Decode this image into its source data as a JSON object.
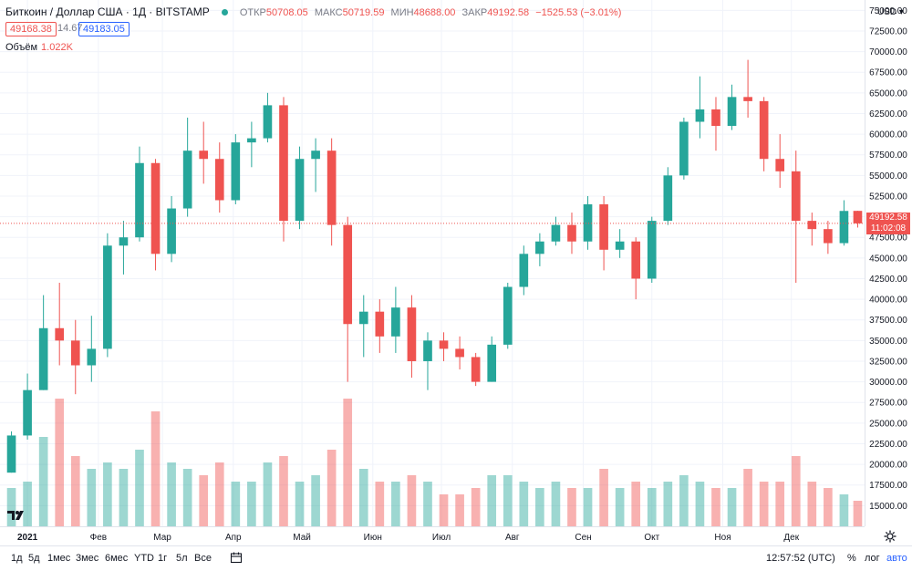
{
  "legend": {
    "symbol": "Биткоин / Доллар США · 1Д · BITSTAMP",
    "open_label": "ОТКР",
    "open": "50708.05",
    "high_label": "МАКС",
    "high": "50719.59",
    "low_label": "МИН",
    "low": "48688.00",
    "close_label": "ЗАКР",
    "close": "49192.58",
    "change": "−1525.53 (−3.01%)"
  },
  "quote": {
    "bid": "49168.38",
    "spread": "14.67",
    "ask": "49183.05"
  },
  "volume": {
    "label": "Объём",
    "value": "1.022K"
  },
  "price_axis": {
    "currency": "USD ▾",
    "last_price": "49192.58",
    "countdown": "11:02:08"
  },
  "bottom_bar": {
    "ranges": [
      "1д",
      "5д",
      "1мес",
      "3мес",
      "6мес",
      "YTD",
      "1г",
      "5л",
      "Все"
    ],
    "clock": "12:57:52 (UTC)",
    "percent": "%",
    "log": "лог",
    "auto": "авто"
  },
  "colors": {
    "up": "#26a69a",
    "down": "#ef5350",
    "accent": "#2962ff"
  },
  "icons": {
    "logo": "tradingview-logo-icon",
    "calendar": "calendar-icon",
    "settings": "gear-icon"
  },
  "chart_data": {
    "type": "candlestick",
    "x_tick_labels": [
      "2021",
      "Фев",
      "Мар",
      "Апр",
      "Май",
      "Июн",
      "Июл",
      "Авг",
      "Сен",
      "Окт",
      "Ноя",
      "Дек"
    ],
    "y_ticks": [
      15000,
      17500,
      20000,
      22500,
      25000,
      27500,
      30000,
      32500,
      35000,
      37500,
      40000,
      42500,
      45000,
      47500,
      50000,
      52500,
      55000,
      57500,
      60000,
      62500,
      65000,
      67500,
      70000,
      72500,
      75000
    ],
    "ylim": [
      12500,
      76250
    ],
    "grid": true,
    "x": [
      "2020-12-25",
      "2021-01-01",
      "2021-01-08",
      "2021-01-15",
      "2021-01-22",
      "2021-01-29",
      "2021-02-05",
      "2021-02-12",
      "2021-02-19",
      "2021-02-26",
      "2021-03-05",
      "2021-03-12",
      "2021-03-19",
      "2021-03-26",
      "2021-04-02",
      "2021-04-09",
      "2021-04-16",
      "2021-04-23",
      "2021-04-30",
      "2021-05-07",
      "2021-05-14",
      "2021-05-21",
      "2021-05-28",
      "2021-06-04",
      "2021-06-11",
      "2021-06-18",
      "2021-06-25",
      "2021-07-02",
      "2021-07-09",
      "2021-07-16",
      "2021-07-23",
      "2021-07-30",
      "2021-08-06",
      "2021-08-13",
      "2021-08-20",
      "2021-08-27",
      "2021-09-03",
      "2021-09-10",
      "2021-09-17",
      "2021-09-24",
      "2021-10-01",
      "2021-10-08",
      "2021-10-15",
      "2021-10-22",
      "2021-10-29",
      "2021-11-05",
      "2021-11-12",
      "2021-11-19",
      "2021-11-26",
      "2021-12-03",
      "2021-12-10",
      "2021-12-17",
      "2021-12-24",
      "2021-12-30"
    ],
    "ohlc": [
      [
        19000,
        24000,
        19000,
        23500
      ],
      [
        23500,
        31000,
        23000,
        29000
      ],
      [
        29000,
        40500,
        29000,
        36500
      ],
      [
        36500,
        42000,
        32000,
        35000
      ],
      [
        35000,
        37500,
        28500,
        32000
      ],
      [
        32000,
        38000,
        30000,
        34000
      ],
      [
        34000,
        48000,
        33000,
        46500
      ],
      [
        46500,
        49500,
        43000,
        47500
      ],
      [
        47500,
        58500,
        47000,
        56500
      ],
      [
        56500,
        57000,
        43500,
        45500
      ],
      [
        45500,
        52500,
        44500,
        51000
      ],
      [
        51000,
        62000,
        50000,
        58000
      ],
      [
        58000,
        61500,
        54000,
        57000
      ],
      [
        57000,
        59000,
        50500,
        52000
      ],
      [
        52000,
        60000,
        51500,
        59000
      ],
      [
        59000,
        61500,
        56000,
        59500
      ],
      [
        59500,
        65000,
        59000,
        63500
      ],
      [
        63500,
        64500,
        47000,
        49500
      ],
      [
        49500,
        58500,
        48500,
        57000
      ],
      [
        57000,
        59500,
        53000,
        58000
      ],
      [
        58000,
        59500,
        46500,
        49000
      ],
      [
        49000,
        50000,
        30000,
        37000
      ],
      [
        37000,
        40500,
        33000,
        38500
      ],
      [
        38500,
        40000,
        33500,
        35500
      ],
      [
        35500,
        41500,
        33500,
        39000
      ],
      [
        39000,
        40500,
        30500,
        32500
      ],
      [
        32500,
        36000,
        29000,
        35000
      ],
      [
        35000,
        36000,
        32500,
        34000
      ],
      [
        34000,
        35500,
        31500,
        33000
      ],
      [
        33000,
        33500,
        29500,
        30000
      ],
      [
        30000,
        35500,
        30000,
        34500
      ],
      [
        34500,
        42000,
        34000,
        41500
      ],
      [
        41500,
        46500,
        40500,
        45500
      ],
      [
        45500,
        48000,
        44000,
        47000
      ],
      [
        47000,
        50000,
        46500,
        49000
      ],
      [
        49000,
        50500,
        45500,
        47000
      ],
      [
        47000,
        52500,
        46000,
        51500
      ],
      [
        51500,
        52500,
        43500,
        46000
      ],
      [
        46000,
        48500,
        45000,
        47000
      ],
      [
        47000,
        47500,
        40000,
        42500
      ],
      [
        42500,
        50000,
        42000,
        49500
      ],
      [
        49500,
        56000,
        49000,
        55000
      ],
      [
        55000,
        62000,
        54500,
        61500
      ],
      [
        61500,
        67000,
        59500,
        63000
      ],
      [
        63000,
        64500,
        58000,
        61000
      ],
      [
        61000,
        66000,
        60500,
        64500
      ],
      [
        64500,
        69000,
        62000,
        64000
      ],
      [
        64000,
        64500,
        55500,
        57000
      ],
      [
        57000,
        60000,
        53500,
        55500
      ],
      [
        55500,
        58000,
        42000,
        49500
      ],
      [
        49500,
        50500,
        46500,
        48500
      ],
      [
        48500,
        49500,
        45500,
        46800
      ],
      [
        46800,
        52000,
        46500,
        50700
      ],
      [
        50708,
        50720,
        48688,
        49193
      ]
    ],
    "volumes": [
      0.3,
      0.35,
      0.7,
      1.0,
      0.55,
      0.45,
      0.5,
      0.45,
      0.6,
      0.9,
      0.5,
      0.45,
      0.4,
      0.5,
      0.35,
      0.35,
      0.5,
      0.55,
      0.35,
      0.4,
      0.6,
      1.0,
      0.45,
      0.35,
      0.35,
      0.4,
      0.35,
      0.25,
      0.25,
      0.3,
      0.4,
      0.4,
      0.35,
      0.3,
      0.35,
      0.3,
      0.3,
      0.45,
      0.3,
      0.35,
      0.3,
      0.35,
      0.4,
      0.35,
      0.3,
      0.3,
      0.45,
      0.35,
      0.35,
      0.55,
      0.35,
      0.3,
      0.25,
      0.2
    ]
  }
}
